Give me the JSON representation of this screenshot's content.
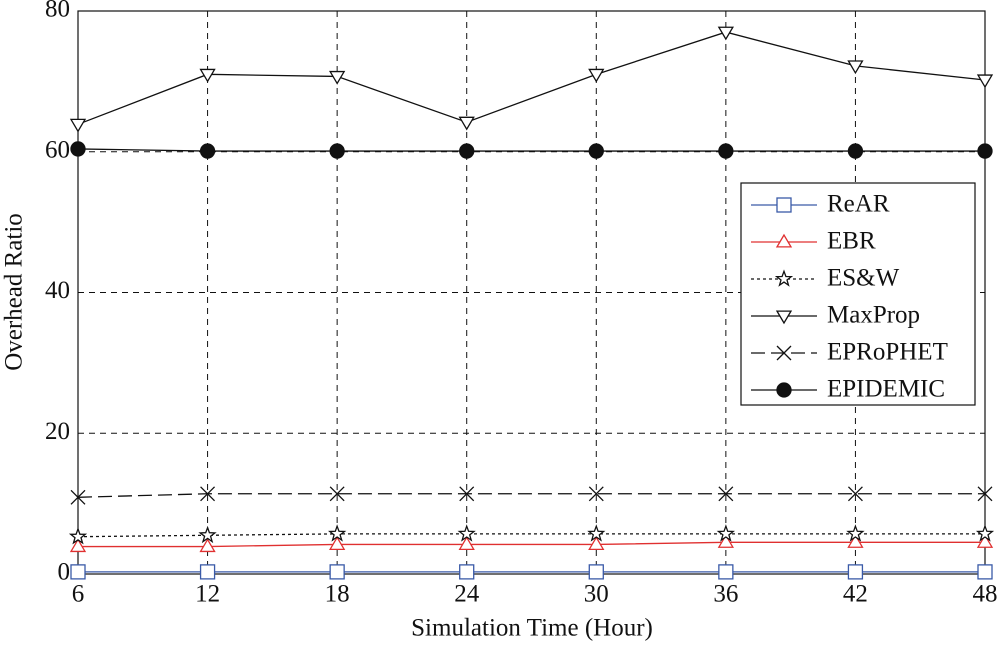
{
  "chart_data": {
    "type": "line",
    "xlabel": "Simulation Time (Hour)",
    "ylabel": "Overhead Ratio",
    "x": [
      6,
      12,
      18,
      24,
      30,
      36,
      42,
      48
    ],
    "xlim": [
      6,
      48
    ],
    "xticks": [
      6,
      12,
      18,
      24,
      30,
      36,
      42,
      48
    ],
    "ylim": [
      0,
      80
    ],
    "yticks": [
      0,
      20,
      40,
      60,
      80
    ],
    "grid": true,
    "legend": "right",
    "series": [
      {
        "name": "ReAR",
        "color": "#3a5aa8",
        "marker": "square",
        "dash": "solid",
        "values": [
          0.3,
          0.3,
          0.3,
          0.3,
          0.3,
          0.3,
          0.3,
          0.3
        ]
      },
      {
        "name": "EBR",
        "color": "#e03030",
        "marker": "triangle-up",
        "dash": "solid",
        "values": [
          3.9,
          3.9,
          4.2,
          4.2,
          4.2,
          4.5,
          4.5,
          4.5
        ]
      },
      {
        "name": "ES&W",
        "color": "#111111",
        "marker": "star",
        "dash": "dotted",
        "values": [
          5.3,
          5.5,
          5.7,
          5.7,
          5.7,
          5.7,
          5.7,
          5.7
        ]
      },
      {
        "name": "MaxProp",
        "color": "#111111",
        "marker": "triangle-down",
        "dash": "solid",
        "values": [
          63.9,
          71.0,
          70.7,
          64.2,
          71.0,
          77.0,
          72.2,
          70.2
        ]
      },
      {
        "name": "EPRoPHET",
        "color": "#111111",
        "marker": "x",
        "dash": "longdash",
        "values": [
          10.9,
          11.4,
          11.4,
          11.4,
          11.4,
          11.4,
          11.4,
          11.4
        ]
      },
      {
        "name": "EPIDEMIC",
        "color": "#111111",
        "marker": "circle",
        "dash": "solid",
        "values": [
          60.4,
          60.1,
          60.1,
          60.1,
          60.1,
          60.1,
          60.1,
          60.1
        ]
      }
    ]
  }
}
